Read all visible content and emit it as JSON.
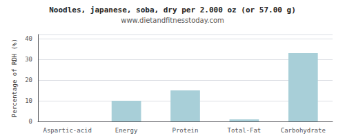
{
  "chart_data": {
    "type": "bar",
    "title": "Noodles, japanese, soba, dry per 2.000 oz (or 57.00 g)",
    "subtitle": "www.dietandfitnesstoday.com",
    "categories": [
      "Aspartic-acid",
      "Energy",
      "Protein",
      "Total-Fat",
      "Carbohydrate"
    ],
    "values": [
      0,
      10,
      15,
      1,
      33
    ],
    "color": "#a8cfd8",
    "ylabel": "Percentage of RDH (%)",
    "ylim": [
      0,
      42
    ],
    "yticks": [
      0,
      10,
      20,
      30,
      40
    ],
    "grid": true
  }
}
